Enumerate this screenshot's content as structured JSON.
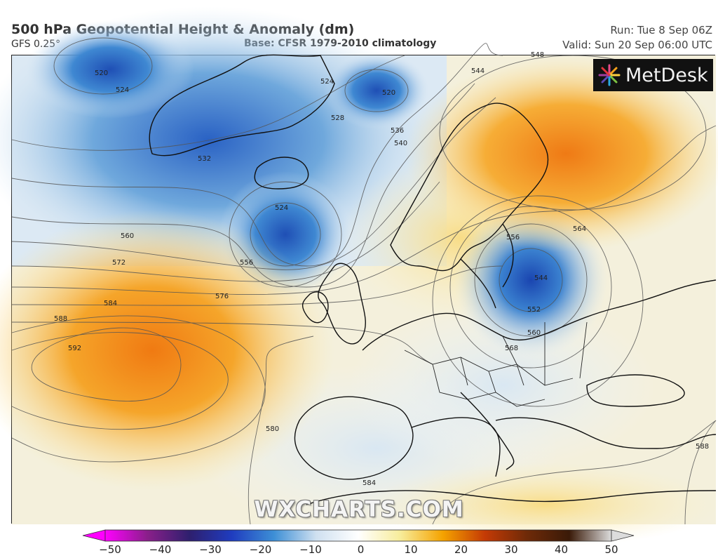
{
  "header": {
    "title": "500 hPa Geopotential Height & Anomaly (dm)",
    "model": "GFS 0.25°",
    "base": "Base: CFSR 1979-2010 climatology",
    "run": "Run: Tue 8 Sep 06Z",
    "valid": "Valid: Sun 20 Sep 06:00 UTC"
  },
  "logo": {
    "text": "MetDesk",
    "icon": "metdesk-burst-icon"
  },
  "watermark": "WXCHARTS.COM",
  "contour_labels": [
    "520",
    "524",
    "520",
    "524",
    "528",
    "532",
    "536",
    "540",
    "544",
    "548",
    "524",
    "556",
    "560",
    "564",
    "572",
    "576",
    "584",
    "588",
    "592",
    "556",
    "544",
    "552",
    "560",
    "568",
    "580",
    "584",
    "588"
  ],
  "colorbar": {
    "ticks": [
      "−50",
      "−40",
      "−30",
      "−20",
      "−10",
      "0",
      "10",
      "20",
      "30",
      "40",
      "50"
    ],
    "colors": [
      "#ff00ff",
      "#8a1f8a",
      "#2e1f6e",
      "#1f3cbf",
      "#3d8fd6",
      "#cfe0f0",
      "#ffffff",
      "#f7ec9a",
      "#f5a300",
      "#c43a05",
      "#6e2a08",
      "#3a1a08",
      "#dcdcdc"
    ]
  }
}
